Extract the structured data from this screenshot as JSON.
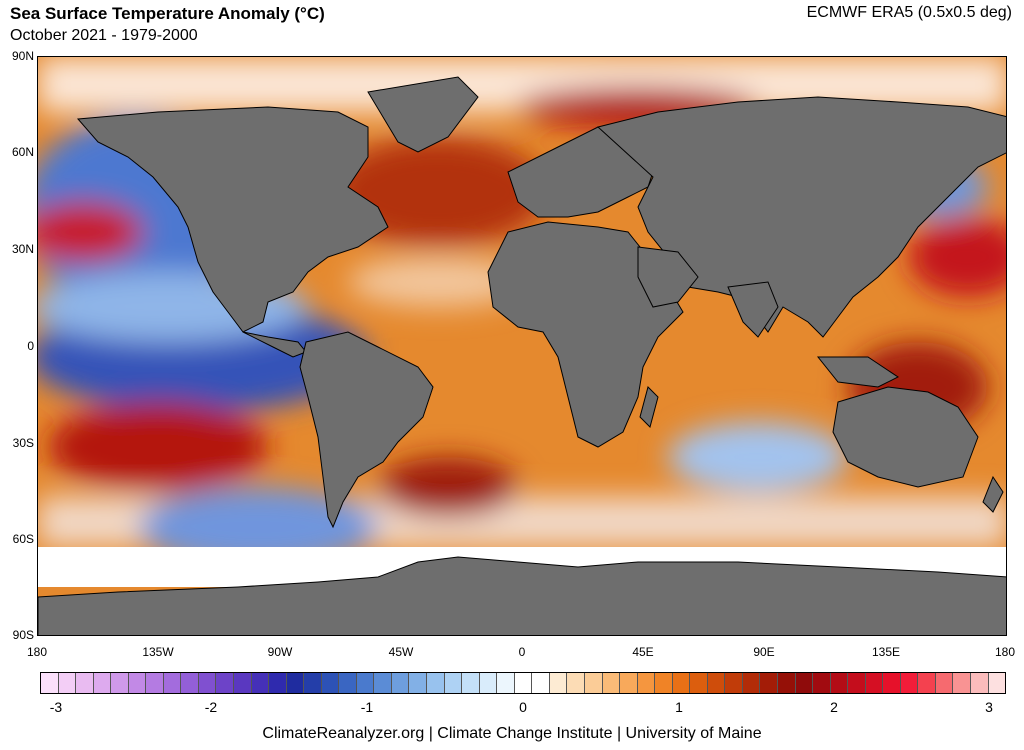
{
  "header": {
    "title": "Sea Surface Temperature Anomaly (°C)",
    "subtitle": "October 2021 - 1979-2000",
    "source": "ECMWF ERA5 (0.5x0.5 deg)"
  },
  "map": {
    "lat_labels": [
      "90N",
      "60N",
      "30N",
      "0",
      "30S",
      "60S",
      "90S"
    ],
    "lon_labels": [
      "180",
      "135W",
      "90W",
      "45W",
      "0",
      "45E",
      "90E",
      "135E",
      "180"
    ],
    "colors": {
      "land": "#6e6e6e",
      "ice": "#ffffff",
      "border": "#000000"
    }
  },
  "colorbar": {
    "labels": [
      "-3",
      "-2",
      "-1",
      "0",
      "1",
      "2",
      "3"
    ],
    "colors": [
      "#fbe0fb",
      "#f3cef6",
      "#e9bbf1",
      "#ddaaee",
      "#cf99ea",
      "#c289e6",
      "#b47be2",
      "#a36cdd",
      "#935fd8",
      "#8050d0",
      "#6d43c8",
      "#5a38c0",
      "#4530b8",
      "#2f2aae",
      "#1f2c9f",
      "#243ea9",
      "#2d52b6",
      "#3a66c2",
      "#4a7acd",
      "#5b8cd6",
      "#6e9ede",
      "#82b0e6",
      "#98c2ee",
      "#aed2f4",
      "#c4e0f8",
      "#d9ecfb",
      "#ecf6fd",
      "#ffffff",
      "#ffffff",
      "#fdebd3",
      "#fcdcb5",
      "#fbcc97",
      "#fabb78",
      "#f8a95b",
      "#f5963f",
      "#f08326",
      "#e87016",
      "#dc5e0e",
      "#cf4d0b",
      "#c13c09",
      "#b22c08",
      "#a31c07",
      "#951007",
      "#8f0b0b",
      "#a10b10",
      "#b30c16",
      "#c40d1c",
      "#d50f23",
      "#e6112a",
      "#f21d39",
      "#f4414f",
      "#f66a6f",
      "#f99393",
      "#fbbcbc",
      "#fde0e0"
    ]
  },
  "footer": {
    "credit": "ClimateReanalyzer.org | Climate Change Institute | University of Maine"
  }
}
